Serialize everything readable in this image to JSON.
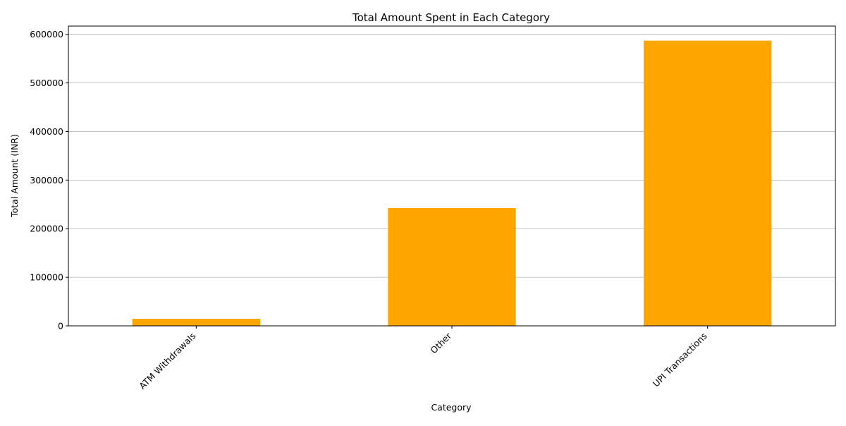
{
  "chart_data": {
    "type": "bar",
    "title": "Total Amount Spent in Each Category",
    "xlabel": "Category",
    "ylabel": "Total Amount (INR)",
    "categories": [
      "ATM Withdrawals",
      "Other",
      "UPI Transactions"
    ],
    "values": [
      14500,
      242500,
      587000
    ],
    "ylim": [
      0,
      617000
    ],
    "yticks": [
      0,
      100000,
      200000,
      300000,
      400000,
      500000,
      600000
    ],
    "ytick_labels": [
      "0",
      "100000",
      "200000",
      "300000",
      "400000",
      "500000",
      "600000"
    ],
    "xtick_rotation": 45,
    "grid": "y-axis horizontal lines",
    "legend": "none",
    "bar_color": "#ffa500",
    "grid_color": "#b0b0b0",
    "axis_color": "#000000"
  }
}
